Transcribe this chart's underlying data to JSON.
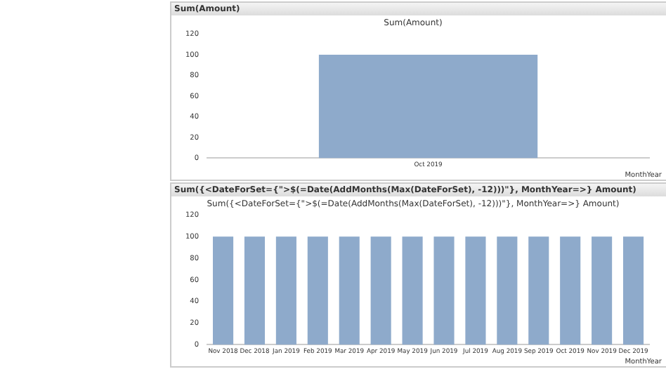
{
  "chart_data": [
    {
      "type": "bar",
      "title": "Sum(Amount)",
      "subtitle": "Sum(Amount)",
      "xlabel": "MonthYear",
      "categories": [
        "Oct 2019"
      ],
      "series": [
        {
          "color": "#8eaacb",
          "values": [
            100
          ]
        }
      ],
      "ylim": [
        0,
        120
      ],
      "yticks": [
        0,
        20,
        40,
        60,
        80,
        100,
        120
      ],
      "grid": false,
      "legend": false
    },
    {
      "type": "bar",
      "title": "Sum({<DateForSet={\">$(=Date(AddMonths(Max(DateForSet), -12)))\"}, MonthYear=>} Amount)",
      "subtitle": "Sum({<DateForSet={\">$(=Date(AddMonths(Max(DateForSet), -12)))\"}, MonthYear=>} Amount)",
      "xlabel": "MonthYear",
      "categories": [
        "Nov 2018",
        "Dec 2018",
        "Jan 2019",
        "Feb 2019",
        "Mar 2019",
        "Apr 2019",
        "May 2019",
        "Jun 2019",
        "Jul 2019",
        "Aug 2019",
        "Sep 2019",
        "Oct 2019",
        "Nov 2019",
        "Dec 2019"
      ],
      "series": [
        {
          "color": "#8eaacb",
          "values": [
            100,
            100,
            100,
            100,
            100,
            100,
            100,
            100,
            100,
            100,
            100,
            100,
            100,
            100
          ]
        }
      ],
      "ylim": [
        0,
        120
      ],
      "yticks": [
        0,
        20,
        40,
        60,
        80,
        100,
        120
      ],
      "grid": false,
      "legend": false
    }
  ]
}
